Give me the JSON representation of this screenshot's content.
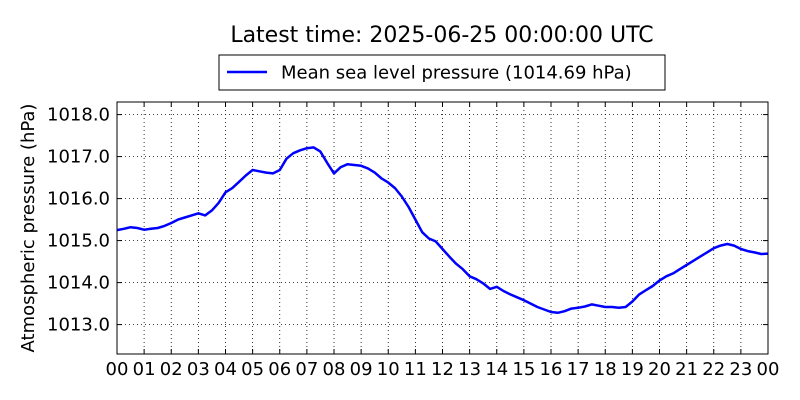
{
  "chart_data": {
    "type": "line",
    "title": "Latest time: 2025-06-25 00:00:00 UTC",
    "xlabel": "",
    "ylabel": "Atmospheric pressure (hPa)",
    "xlim": [
      0,
      24
    ],
    "ylim": [
      1012.3,
      1018.3
    ],
    "x_ticks": [
      0,
      1,
      2,
      3,
      4,
      5,
      6,
      7,
      8,
      9,
      10,
      11,
      12,
      13,
      14,
      15,
      16,
      17,
      18,
      19,
      20,
      21,
      22,
      23,
      24
    ],
    "x_tick_labels": [
      "00",
      "01",
      "02",
      "03",
      "04",
      "05",
      "06",
      "07",
      "08",
      "09",
      "10",
      "11",
      "12",
      "13",
      "14",
      "15",
      "16",
      "17",
      "18",
      "19",
      "20",
      "21",
      "22",
      "23",
      "00"
    ],
    "y_ticks": [
      1013.0,
      1014.0,
      1015.0,
      1016.0,
      1017.0,
      1018.0
    ],
    "y_tick_labels": [
      "1013.0",
      "1014.0",
      "1015.0",
      "1016.0",
      "1017.0",
      "1018.0"
    ],
    "grid": true,
    "legend_position": "top-center",
    "series": [
      {
        "name": "Mean sea level pressure (1014.69 hPa)",
        "color": "#0000ff",
        "x": [
          0,
          0.25,
          0.5,
          0.75,
          1,
          1.25,
          1.5,
          1.75,
          2,
          2.25,
          2.5,
          2.75,
          3,
          3.25,
          3.5,
          3.75,
          4,
          4.25,
          4.5,
          4.75,
          5,
          5.25,
          5.5,
          5.75,
          6,
          6.25,
          6.5,
          6.75,
          7,
          7.25,
          7.5,
          7.75,
          8,
          8.25,
          8.5,
          8.75,
          9,
          9.25,
          9.5,
          9.75,
          10,
          10.25,
          10.5,
          10.75,
          11,
          11.25,
          11.5,
          11.75,
          12,
          12.25,
          12.5,
          12.75,
          13,
          13.25,
          13.5,
          13.75,
          14,
          14.25,
          14.5,
          14.75,
          15,
          15.25,
          15.5,
          15.75,
          16,
          16.25,
          16.5,
          16.75,
          17,
          17.25,
          17.5,
          17.75,
          18,
          18.25,
          18.5,
          18.75,
          19,
          19.25,
          19.5,
          19.75,
          20,
          20.25,
          20.5,
          20.75,
          21,
          21.25,
          21.5,
          21.75,
          22,
          22.25,
          22.5,
          22.75,
          23,
          23.25,
          23.5,
          23.75,
          24
        ],
        "values": [
          1015.25,
          1015.28,
          1015.32,
          1015.3,
          1015.26,
          1015.28,
          1015.3,
          1015.35,
          1015.42,
          1015.5,
          1015.55,
          1015.6,
          1015.65,
          1015.6,
          1015.72,
          1015.9,
          1016.15,
          1016.25,
          1016.4,
          1016.55,
          1016.68,
          1016.65,
          1016.62,
          1016.6,
          1016.68,
          1016.95,
          1017.08,
          1017.15,
          1017.2,
          1017.22,
          1017.12,
          1016.85,
          1016.6,
          1016.75,
          1016.82,
          1016.8,
          1016.78,
          1016.72,
          1016.62,
          1016.48,
          1016.38,
          1016.25,
          1016.05,
          1015.8,
          1015.5,
          1015.2,
          1015.05,
          1014.98,
          1014.8,
          1014.62,
          1014.45,
          1014.32,
          1014.15,
          1014.08,
          1013.98,
          1013.85,
          1013.9,
          1013.8,
          1013.72,
          1013.65,
          1013.58,
          1013.5,
          1013.42,
          1013.36,
          1013.3,
          1013.28,
          1013.32,
          1013.38,
          1013.4,
          1013.43,
          1013.48,
          1013.45,
          1013.42,
          1013.42,
          1013.4,
          1013.42,
          1013.55,
          1013.72,
          1013.82,
          1013.92,
          1014.05,
          1014.15,
          1014.22,
          1014.32,
          1014.42,
          1014.52,
          1014.62,
          1014.72,
          1014.82,
          1014.88,
          1014.92,
          1014.88,
          1014.8,
          1014.75,
          1014.72,
          1014.68,
          1014.69
        ]
      }
    ]
  }
}
